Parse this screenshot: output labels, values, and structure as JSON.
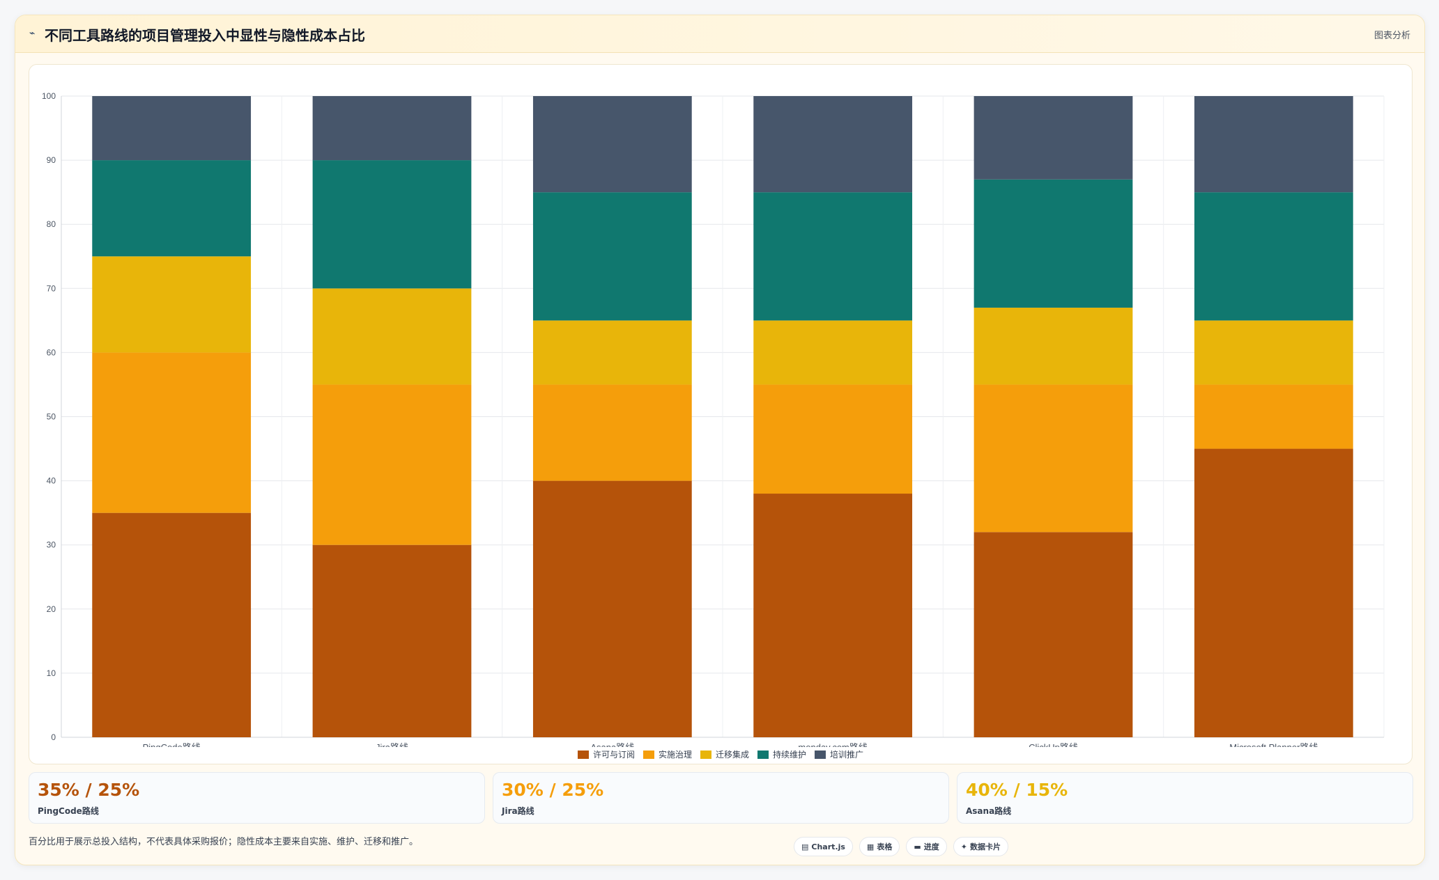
{
  "header": {
    "icon": "chart-line-icon",
    "title": "不同工具路线的项目管理投入中显性与隐性成本占比",
    "analyze_label": "图表分析"
  },
  "chart_data": {
    "type": "bar",
    "stacked": true,
    "categories": [
      "PingCode路线",
      "Jira路线",
      "Asana路线",
      "monday.com路线",
      "ClickUp路线",
      "Microsoft Planner路线"
    ],
    "series": [
      {
        "name": "许可与订阅",
        "color": "#b5530a",
        "values": [
          35,
          30,
          40,
          38,
          32,
          45
        ]
      },
      {
        "name": "实施治理",
        "color": "#f59e0b",
        "values": [
          25,
          25,
          15,
          17,
          23,
          10
        ]
      },
      {
        "name": "迁移集成",
        "color": "#e8b50a",
        "values": [
          15,
          15,
          10,
          10,
          12,
          10
        ]
      },
      {
        "name": "持续维护",
        "color": "#10786f",
        "values": [
          15,
          20,
          20,
          20,
          20,
          20
        ]
      },
      {
        "name": "培训推广",
        "color": "#47566b",
        "values": [
          10,
          10,
          15,
          15,
          13,
          15
        ]
      }
    ],
    "ylim": [
      0,
      100
    ],
    "yticks": [
      "0",
      "10",
      "20",
      "30",
      "40",
      "50",
      "60",
      "70",
      "80",
      "90",
      "100"
    ],
    "grid": true,
    "legend_position": "bottom"
  },
  "cards": [
    {
      "value": "35% / 25%",
      "label": "PingCode路线",
      "color": "#b5530a"
    },
    {
      "value": "30% / 25%",
      "label": "Jira路线",
      "color": "#f59e0b"
    },
    {
      "value": "40% / 15%",
      "label": "Asana路线",
      "color": "#e8b50a"
    }
  ],
  "footnote": "百分比用于展示总投入结构，不代表具体采购报价；隐性成本主要来自实施、维护、迁移和推广。",
  "chips": [
    {
      "icon": "chart-icon",
      "label": "Chart.js"
    },
    {
      "icon": "table-icon",
      "label": "表格"
    },
    {
      "icon": "progress-icon",
      "label": "进度"
    },
    {
      "icon": "card-icon",
      "label": "数据卡片"
    }
  ]
}
